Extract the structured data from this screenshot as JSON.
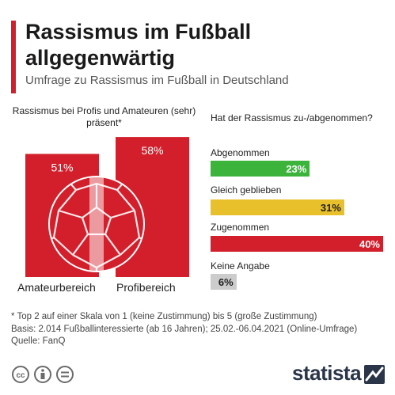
{
  "title": "Rassismus im Fußball allgegenwärtig",
  "subtitle": "Umfrage zu Rassismus im Fußball in Deutschland",
  "colors": {
    "accent": "#d21f2b",
    "red": "#d21f2b",
    "green": "#3cb43c",
    "yellow": "#e8c02c",
    "gray": "#cccccc"
  },
  "chart_data": [
    {
      "type": "bar",
      "title": "Rassismus bei Profis und Amateuren (sehr) präsent*",
      "categories": [
        "Amateurbereich",
        "Profibereich"
      ],
      "values": [
        51,
        58
      ],
      "value_labels": [
        "51%",
        "58%"
      ],
      "unit": "%"
    },
    {
      "type": "bar",
      "orientation": "horizontal",
      "title": "Hat der Rassismus zu-/abgenommen?",
      "categories": [
        "Abgenommen",
        "Gleich geblieben",
        "Zugenommen",
        "Keine Angabe"
      ],
      "values": [
        23,
        31,
        40,
        6
      ],
      "value_labels": [
        "23%",
        "31%",
        "40%",
        "6%"
      ],
      "colors": [
        "#3cb43c",
        "#e8c02c",
        "#d21f2b",
        "#cccccc"
      ],
      "unit": "%"
    }
  ],
  "footer": {
    "note": "* Top 2 auf einer Skala von 1 (keine Zustimmung) bis 5 (große Zustimmung)",
    "basis": "Basis: 2.014 Fußballinteressierte (ab 16 Jahren); 25.02.-06.04.2021 (Online-Umfrage)",
    "source": "Quelle: FanQ",
    "brand": "statista"
  },
  "icons": [
    "cc-icon",
    "by-person-icon",
    "nd-equals-icon",
    "statista-logo-icon"
  ]
}
